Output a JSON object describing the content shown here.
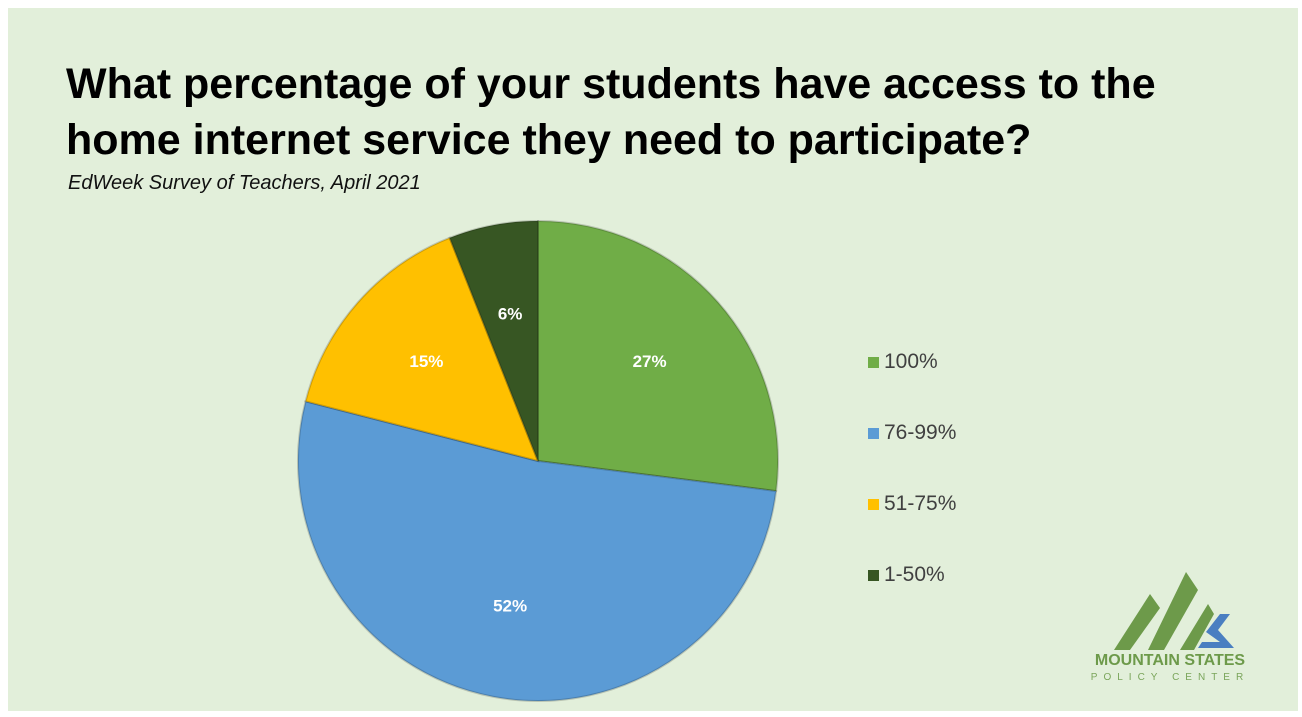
{
  "title": "What percentage of your students have access to the home internet service they need to participate?",
  "subtitle": "EdWeek Survey of Teachers, April 2021",
  "chart_data": {
    "type": "pie",
    "title": "What percentage of your students have access to the home internet service they need to participate?",
    "subtitle": "EdWeek Survey of Teachers, April 2021",
    "legend_position": "right",
    "slices": [
      {
        "label": "100%",
        "value": 27,
        "display": "27%",
        "color": "#70ad47"
      },
      {
        "label": "76-99%",
        "value": 52,
        "display": "52%",
        "color": "#5b9bd5"
      },
      {
        "label": "51-75%",
        "value": 15,
        "display": "15%",
        "color": "#ffc000"
      },
      {
        "label": "1-50%",
        "value": 6,
        "display": "6%",
        "color": "#375623"
      }
    ]
  },
  "logo": {
    "line1": "MOUNTAIN STATES",
    "line2": "POLICY CENTER",
    "color_green": "#6d9a4a",
    "color_blue": "#4a7fc1"
  }
}
